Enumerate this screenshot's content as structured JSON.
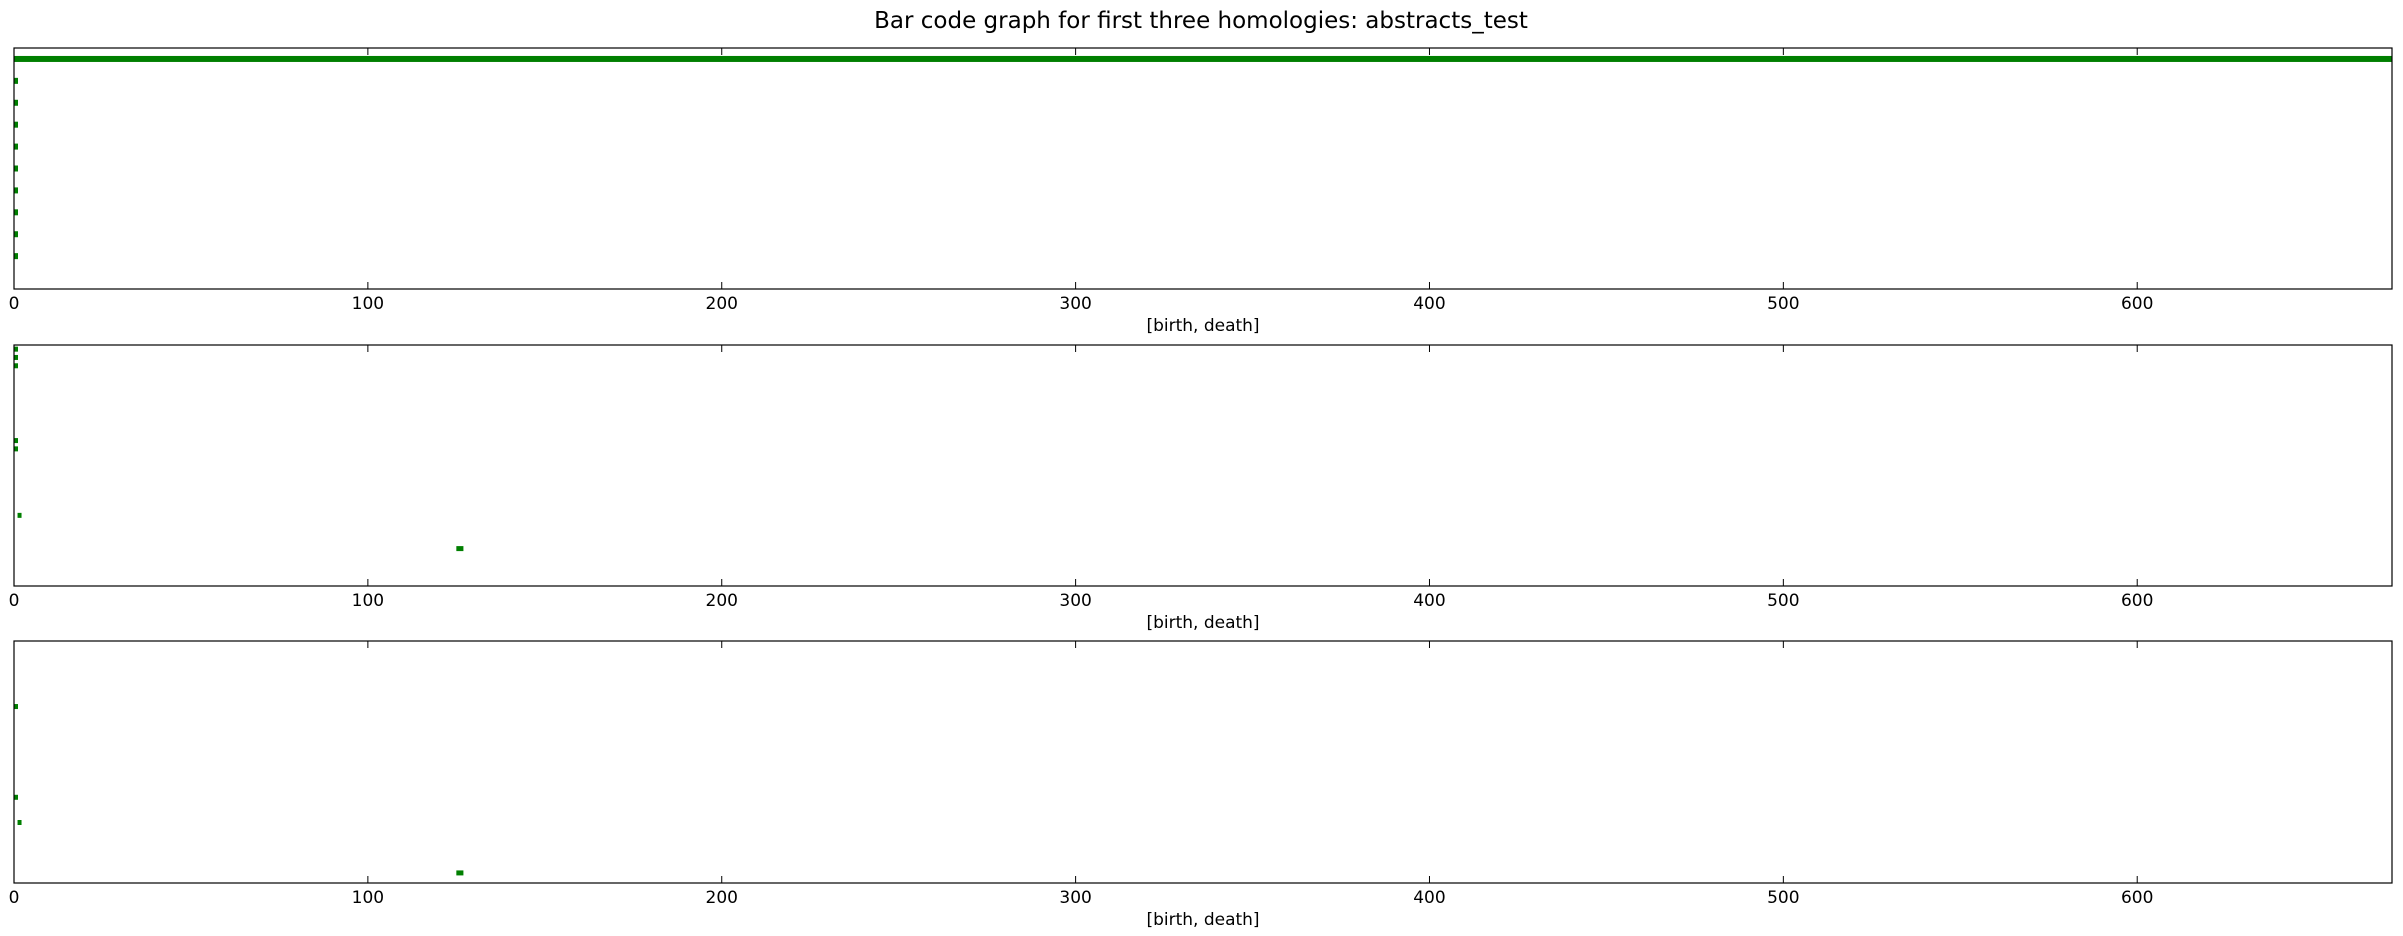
{
  "figure": {
    "title": "Bar code graph for first three homologies: abstracts_test"
  },
  "colors": {
    "bar": "#007f00",
    "axes": "#000000",
    "background": "#ffffff"
  },
  "chart_data": [
    {
      "type": "barcode",
      "xlabel": "[birth, death]",
      "xlim": [
        0,
        672
      ],
      "xticks": [
        0,
        100,
        200,
        300,
        400,
        500,
        600
      ],
      "ylim": [
        -0.5,
        10.5
      ],
      "intervals": [
        {
          "birth": 0,
          "death": 672
        },
        {
          "birth": 0,
          "death": 1
        },
        {
          "birth": 0,
          "death": 1
        },
        {
          "birth": 0,
          "death": 1
        },
        {
          "birth": 0,
          "death": 1
        },
        {
          "birth": 0,
          "death": 1
        },
        {
          "birth": 0,
          "death": 1
        },
        {
          "birth": 0,
          "death": 1
        },
        {
          "birth": 0,
          "death": 1
        },
        {
          "birth": 0,
          "death": 1
        }
      ]
    },
    {
      "type": "barcode",
      "xlabel": "[birth, death]",
      "xlim": [
        0,
        672
      ],
      "xticks": [
        0,
        100,
        200,
        300,
        400,
        500,
        600
      ],
      "ylim": [
        -0.5,
        28.5
      ],
      "intervals": [
        {
          "birth": 0,
          "death": 1
        },
        {
          "birth": 0,
          "death": 1
        },
        {
          "birth": 0,
          "death": 1
        },
        {
          "birth": 0,
          "death": 1
        },
        {
          "birth": 0,
          "death": 1
        },
        {
          "birth": 1,
          "death": 2
        },
        {
          "birth": 125,
          "death": 127
        }
      ],
      "positions": [
        0,
        1,
        2,
        11,
        12,
        20,
        24
      ]
    },
    {
      "type": "barcode",
      "xlabel": "[birth, death]",
      "xlim": [
        0,
        672
      ],
      "xticks": [
        0,
        100,
        200,
        300,
        400,
        500,
        600
      ],
      "ylim": [
        -0.5,
        23.5
      ],
      "intervals": [
        {
          "birth": 0,
          "death": 1
        },
        {
          "birth": 0,
          "death": 1
        },
        {
          "birth": 1,
          "death": 2
        },
        {
          "birth": 125,
          "death": 127
        }
      ],
      "positions": [
        6,
        15,
        17.5,
        22.5
      ]
    }
  ]
}
